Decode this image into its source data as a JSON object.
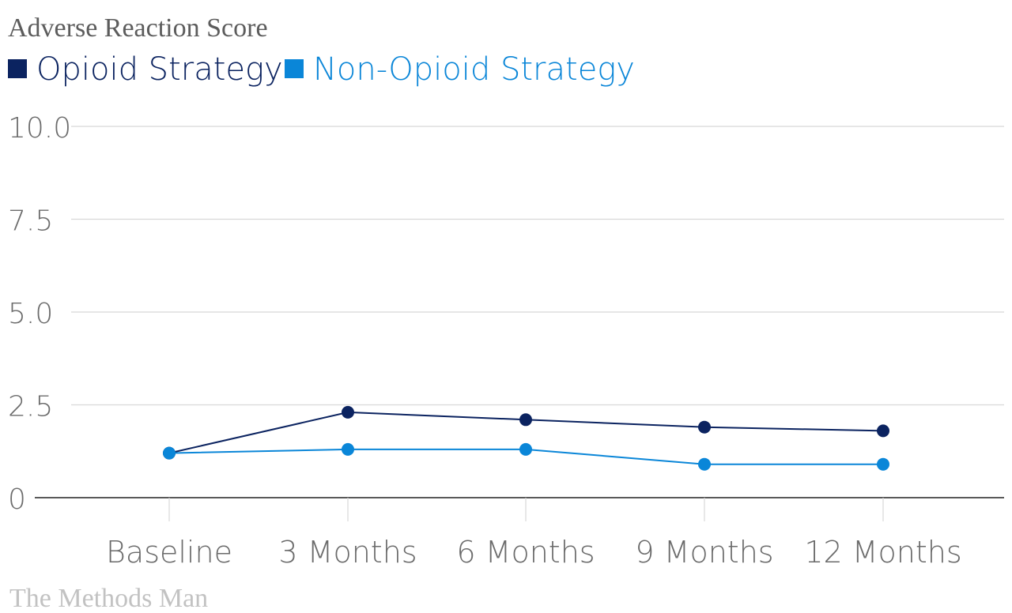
{
  "chart_data": {
    "type": "line",
    "title": "Adverse Reaction Score",
    "source": "The Methods Man",
    "categories": [
      "Baseline",
      "3 Months",
      "6 Months",
      "9 Months",
      "12 Months"
    ],
    "series": [
      {
        "name": "Opioid Strategy",
        "color": "#0b2360",
        "values": [
          1.2,
          2.3,
          2.1,
          1.9,
          1.8
        ]
      },
      {
        "name": "Non-Opioid Strategy",
        "color": "#0a86d8",
        "values": [
          1.2,
          1.3,
          1.3,
          0.9,
          0.9
        ]
      }
    ],
    "yticks": [
      "0",
      "2.5",
      "5.0",
      "7.5",
      "10.0"
    ],
    "ylim": [
      0,
      10
    ],
    "grid": true,
    "legend": "top-left"
  }
}
